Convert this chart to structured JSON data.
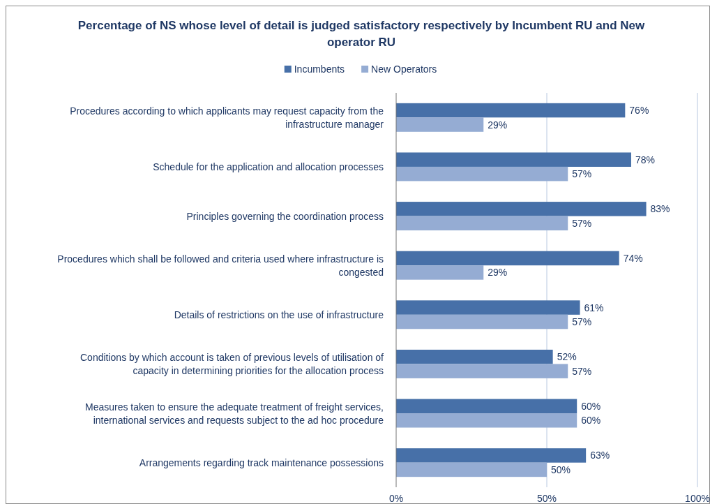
{
  "chart_data": {
    "type": "bar",
    "orientation": "horizontal",
    "title": "Percentage of NS whose level of detail is judged satisfactory respectively by Incumbent RU and New operator RU",
    "categories": [
      "Procedures according to which applicants may request capacity from the infrastructure manager",
      "Schedule for the application and allocation processes",
      "Principles governing the coordination process",
      "Procedures which shall be followed and criteria used where infrastructure is congested",
      "Details of restrictions on the use of infrastructure",
      "Conditions by which account is taken of previous levels of utilisation of capacity in determining priorities for the allocation process",
      "Measures taken to ensure the adequate treatment of freight services, international services and requests subject to the ad hoc procedure",
      "Arrangements regarding track maintenance possessions"
    ],
    "series": [
      {
        "name": "Incumbents",
        "color": "#4770a8",
        "values": [
          76,
          78,
          83,
          74,
          61,
          52,
          60,
          63
        ],
        "value_labels": [
          "76%",
          "78%",
          "83%",
          "74%",
          "61%",
          "52%",
          "60%",
          "63%"
        ]
      },
      {
        "name": "New Operators",
        "color": "#95acd3",
        "values": [
          29,
          57,
          57,
          29,
          57,
          57,
          60,
          50
        ],
        "value_labels": [
          "29%",
          "57%",
          "57%",
          "29%",
          "57%",
          "57%",
          "60%",
          "50%"
        ]
      }
    ],
    "xlim": [
      0,
      100
    ],
    "xticks": [
      {
        "value": 0,
        "label": "0%"
      },
      {
        "value": 50,
        "label": "50%"
      },
      {
        "value": 100,
        "label": "100%"
      }
    ],
    "grid": "x",
    "legend": "top"
  }
}
